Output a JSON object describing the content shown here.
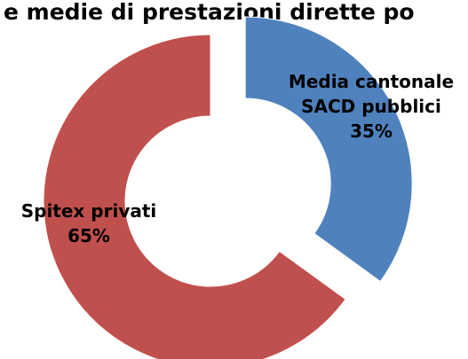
{
  "chart_data": {
    "type": "pie",
    "variant": "doughnut",
    "title": "e medie di prestazioni dirette po",
    "slices": [
      {
        "label_lines": [
          "Media cantonale",
          "SACD pubblici"
        ],
        "value": 35,
        "value_label": "35%",
        "color": "#4f81bd",
        "exploded": true
      },
      {
        "label_lines": [
          "Spitex privati"
        ],
        "value": 65,
        "value_label": "65%",
        "color": "#c0504d",
        "exploded": false
      }
    ]
  }
}
